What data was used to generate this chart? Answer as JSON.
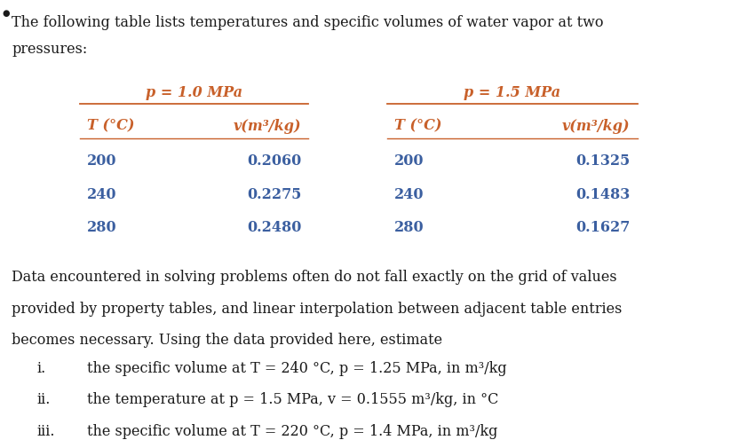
{
  "bg_color": "#ffffff",
  "header_color": "#c8602a",
  "data_color": "#3b5fa0",
  "body_text_color": "#1a1a1a",
  "intro_line1": "The following table lists temperatures and specific volumes of water vapor at two",
  "intro_line2": "pressures:",
  "p1_label": "p = 1.0 MPa",
  "p2_label": "p = 1.5 MPa",
  "col1_header": "T (°C)",
  "col2_header": "v(m³/kg)",
  "col3_header": "T (°C)",
  "col4_header": "v(m³/kg)",
  "p1_data": [
    [
      200,
      "0.2060"
    ],
    [
      240,
      "0.2275"
    ],
    [
      280,
      "0.2480"
    ]
  ],
  "p2_data": [
    [
      200,
      "0.1325"
    ],
    [
      240,
      "0.1483"
    ],
    [
      280,
      "0.1627"
    ]
  ],
  "body_text": [
    "Data encountered in solving problems often do not fall exactly on the grid of values",
    "provided by property tables, and linear interpolation between adjacent table entries",
    "becomes necessary. Using the data provided here, estimate"
  ],
  "bullets": [
    [
      "i.",
      "the specific volume at T = 240 °C, p = 1.25 MPa, in m³/kg"
    ],
    [
      "ii.",
      "the temperature at p = 1.5 MPa, v = 0.1555 m³/kg, in °C"
    ],
    [
      "iii.",
      "the specific volume at T = 220 °C, p = 1.4 MPa, in m³/kg"
    ]
  ],
  "figsize": [
    8.49,
    4.96
  ],
  "dpi": 100
}
